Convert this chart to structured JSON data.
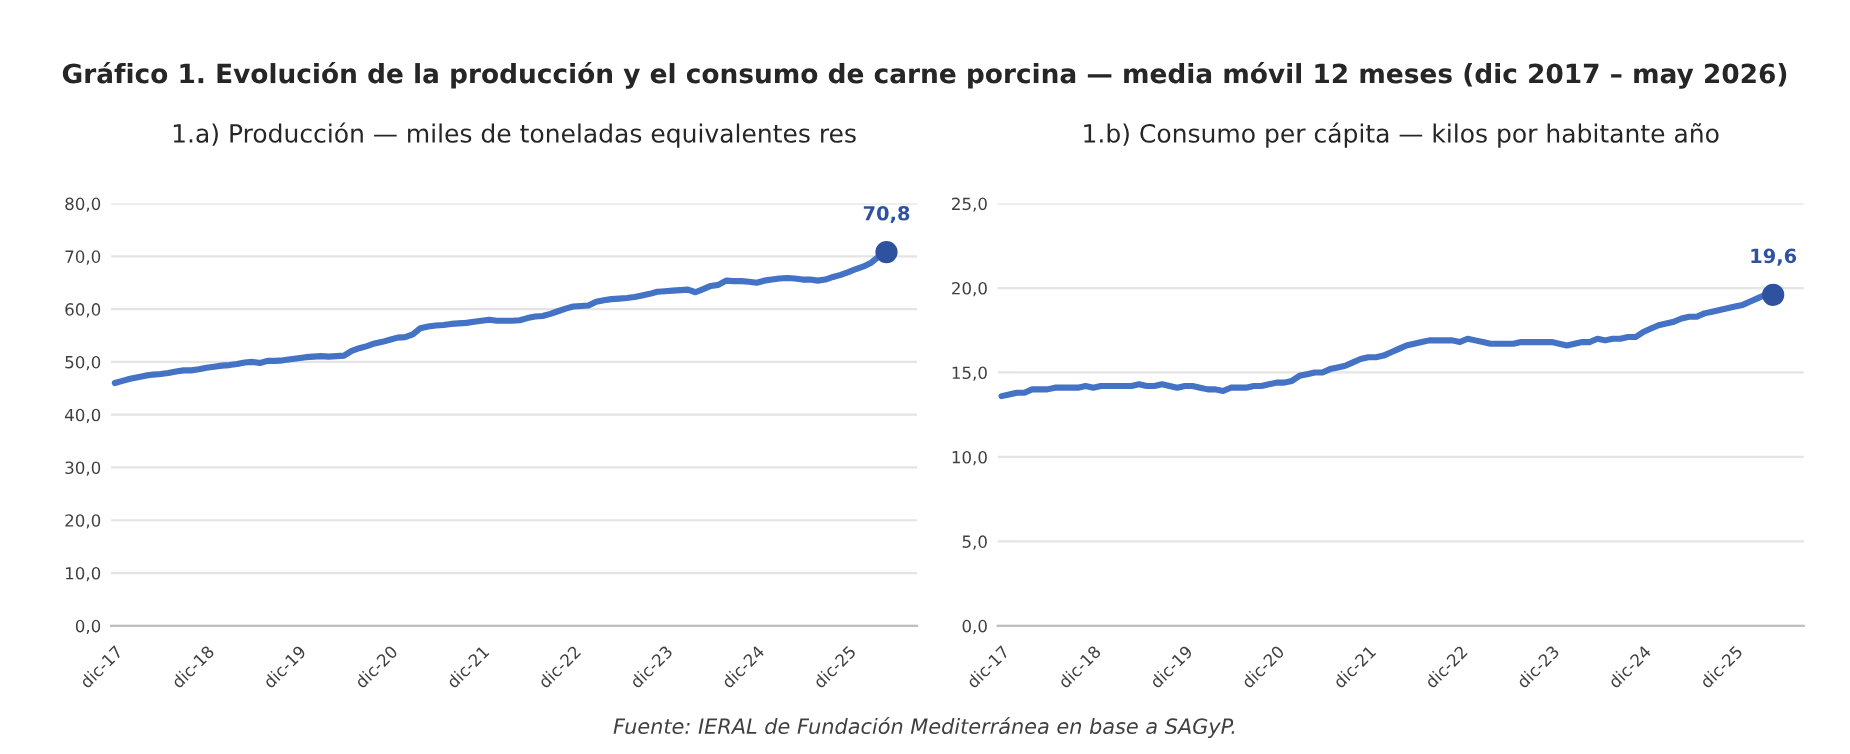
{
  "chart_data": [
    {
      "type": "line",
      "title": "1.a) Producción — miles de toneladas equivalentes res",
      "annotations": [
        "Gráfico 1. Evolución de la producción y el consumo de carne porcina — media móvil 12 meses (dic 2017 – may 2026)"
      ],
      "categories": [
        "dic-17",
        null,
        null,
        null,
        null,
        null,
        null,
        null,
        null,
        null,
        null,
        null,
        "dic-18",
        null,
        null,
        null,
        null,
        null,
        null,
        null,
        null,
        null,
        null,
        null,
        "dic-19",
        null,
        null,
        null,
        null,
        null,
        null,
        null,
        null,
        null,
        null,
        null,
        "dic-20",
        null,
        null,
        null,
        null,
        null,
        null,
        null,
        null,
        null,
        null,
        null,
        "dic-21",
        null,
        null,
        null,
        null,
        null,
        null,
        null,
        null,
        null,
        null,
        null,
        "dic-22",
        null,
        null,
        null,
        null,
        null,
        null,
        null,
        null,
        null,
        null,
        null,
        "dic-23",
        null,
        null,
        null,
        null,
        null,
        null,
        null,
        null,
        null,
        null,
        null,
        "dic-24",
        null,
        null,
        null,
        null,
        null,
        null,
        null,
        null,
        null,
        null,
        null,
        "dic-25",
        null,
        null,
        null,
        null,
        null
      ],
      "series": [
        {
          "color": "#4472c4",
          "values": [
            46.0,
            46.4,
            46.8,
            47.1,
            47.4,
            47.6,
            47.7,
            47.9,
            48.2,
            48.4,
            48.4,
            48.6,
            48.9,
            49.1,
            49.3,
            49.4,
            49.6,
            49.9,
            50.0,
            49.8,
            50.2,
            50.2,
            50.3,
            50.5,
            50.7,
            50.9,
            51.0,
            51.1,
            51.0,
            51.1,
            51.2,
            52.1,
            52.6,
            53.0,
            53.5,
            53.8,
            54.2,
            54.6,
            54.7,
            55.2,
            56.4,
            56.7,
            56.9,
            57.0,
            57.2,
            57.3,
            57.4,
            57.6,
            57.8,
            58.0,
            57.8,
            57.8,
            57.8,
            57.9,
            58.3,
            58.6,
            58.7,
            59.1,
            59.6,
            60.1,
            60.5,
            60.6,
            60.7,
            61.4,
            61.7,
            61.9,
            62.0,
            62.1,
            62.3,
            62.6,
            62.9,
            63.3,
            63.4,
            63.5,
            63.6,
            63.7,
            63.2,
            63.8,
            64.4,
            64.6,
            65.4,
            65.3,
            65.3,
            65.2,
            65.0,
            65.4,
            65.6,
            65.8,
            65.9,
            65.8,
            65.6,
            65.6,
            65.4,
            65.6,
            66.1,
            66.5,
            67.0,
            67.6,
            68.1,
            68.8,
            70.0,
            70.8
          ],
          "value_labels": [
            null,
            null,
            null,
            null,
            null,
            null,
            null,
            null,
            null,
            null,
            null,
            null,
            null,
            null,
            null,
            null,
            null,
            null,
            null,
            null,
            null,
            null,
            null,
            null,
            null,
            null,
            null,
            null,
            null,
            null,
            null,
            null,
            null,
            null,
            null,
            null,
            null,
            null,
            null,
            null,
            null,
            null,
            null,
            null,
            null,
            null,
            null,
            null,
            null,
            null,
            null,
            null,
            null,
            null,
            null,
            null,
            null,
            null,
            null,
            null,
            null,
            null,
            null,
            null,
            null,
            null,
            null,
            null,
            null,
            null,
            null,
            null,
            null,
            null,
            null,
            null,
            null,
            null,
            null,
            null,
            null,
            null,
            null,
            null,
            null,
            null,
            null,
            null,
            null,
            null,
            null,
            null,
            null,
            null,
            null,
            null,
            null,
            null,
            null,
            null,
            null,
            "70,8"
          ]
        }
      ],
      "ylim": [
        0,
        80
      ],
      "yticks": [
        {
          "value": 0,
          "label": "0,0"
        },
        {
          "value": 10,
          "label": "10,0"
        },
        {
          "value": 20,
          "label": "20,0"
        },
        {
          "value": 30,
          "label": "30,0"
        },
        {
          "value": 40,
          "label": "40,0"
        },
        {
          "value": 50,
          "label": "50,0"
        },
        {
          "value": 60,
          "label": "60,0"
        },
        {
          "value": 70,
          "label": "70,0"
        },
        {
          "value": 80,
          "label": "80,0"
        }
      ],
      "grid": "y"
    },
    {
      "type": "line",
      "title": "1.b) Consumo per cápita — kilos por habitante año",
      "annotations": [
        "Fuente: IERAL de Fundación Mediterránea en base a SAGyP."
      ],
      "categories": [
        "dic-17",
        null,
        null,
        null,
        null,
        null,
        null,
        null,
        null,
        null,
        null,
        null,
        "dic-18",
        null,
        null,
        null,
        null,
        null,
        null,
        null,
        null,
        null,
        null,
        null,
        "dic-19",
        null,
        null,
        null,
        null,
        null,
        null,
        null,
        null,
        null,
        null,
        null,
        "dic-20",
        null,
        null,
        null,
        null,
        null,
        null,
        null,
        null,
        null,
        null,
        null,
        "dic-21",
        null,
        null,
        null,
        null,
        null,
        null,
        null,
        null,
        null,
        null,
        null,
        "dic-22",
        null,
        null,
        null,
        null,
        null,
        null,
        null,
        null,
        null,
        null,
        null,
        "dic-23",
        null,
        null,
        null,
        null,
        null,
        null,
        null,
        null,
        null,
        null,
        null,
        "dic-24",
        null,
        null,
        null,
        null,
        null,
        null,
        null,
        null,
        null,
        null,
        null,
        "dic-25",
        null,
        null,
        null,
        null,
        null
      ],
      "series": [
        {
          "color": "#4472c4",
          "values": [
            13.6,
            13.7,
            13.8,
            13.8,
            14.0,
            14.0,
            14.0,
            14.1,
            14.1,
            14.1,
            14.1,
            14.2,
            14.1,
            14.2,
            14.2,
            14.2,
            14.2,
            14.2,
            14.3,
            14.2,
            14.2,
            14.3,
            14.2,
            14.1,
            14.2,
            14.2,
            14.1,
            14.0,
            14.0,
            13.9,
            14.1,
            14.1,
            14.1,
            14.2,
            14.2,
            14.3,
            14.4,
            14.4,
            14.5,
            14.8,
            14.9,
            15.0,
            15.0,
            15.2,
            15.3,
            15.4,
            15.6,
            15.8,
            15.9,
            15.9,
            16.0,
            16.2,
            16.4,
            16.6,
            16.7,
            16.8,
            16.9,
            16.9,
            16.9,
            16.9,
            16.8,
            17.0,
            16.9,
            16.8,
            16.7,
            16.7,
            16.7,
            16.7,
            16.8,
            16.8,
            16.8,
            16.8,
            16.8,
            16.7,
            16.6,
            16.7,
            16.8,
            16.8,
            17.0,
            16.9,
            17.0,
            17.0,
            17.1,
            17.1,
            17.4,
            17.6,
            17.8,
            17.9,
            18.0,
            18.2,
            18.3,
            18.3,
            18.5,
            18.6,
            18.7,
            18.8,
            18.9,
            19.0,
            19.2,
            19.4,
            19.6,
            19.6
          ],
          "value_labels": [
            null,
            null,
            null,
            null,
            null,
            null,
            null,
            null,
            null,
            null,
            null,
            null,
            null,
            null,
            null,
            null,
            null,
            null,
            null,
            null,
            null,
            null,
            null,
            null,
            null,
            null,
            null,
            null,
            null,
            null,
            null,
            null,
            null,
            null,
            null,
            null,
            null,
            null,
            null,
            null,
            null,
            null,
            null,
            null,
            null,
            null,
            null,
            null,
            null,
            null,
            null,
            null,
            null,
            null,
            null,
            null,
            null,
            null,
            null,
            null,
            null,
            null,
            null,
            null,
            null,
            null,
            null,
            null,
            null,
            null,
            null,
            null,
            null,
            null,
            null,
            null,
            null,
            null,
            null,
            null,
            null,
            null,
            null,
            null,
            null,
            null,
            null,
            null,
            null,
            null,
            null,
            null,
            null,
            null,
            null,
            null,
            null,
            null,
            null,
            null,
            null,
            "19,6"
          ]
        }
      ],
      "ylim": [
        0,
        25
      ],
      "yticks": [
        {
          "value": 0,
          "label": "0,0"
        },
        {
          "value": 5,
          "label": "5,0"
        },
        {
          "value": 10,
          "label": "10,0"
        },
        {
          "value": 15,
          "label": "15,0"
        },
        {
          "value": 20,
          "label": "20,0"
        },
        {
          "value": 25,
          "label": "25,0"
        }
      ],
      "grid": "y"
    }
  ]
}
